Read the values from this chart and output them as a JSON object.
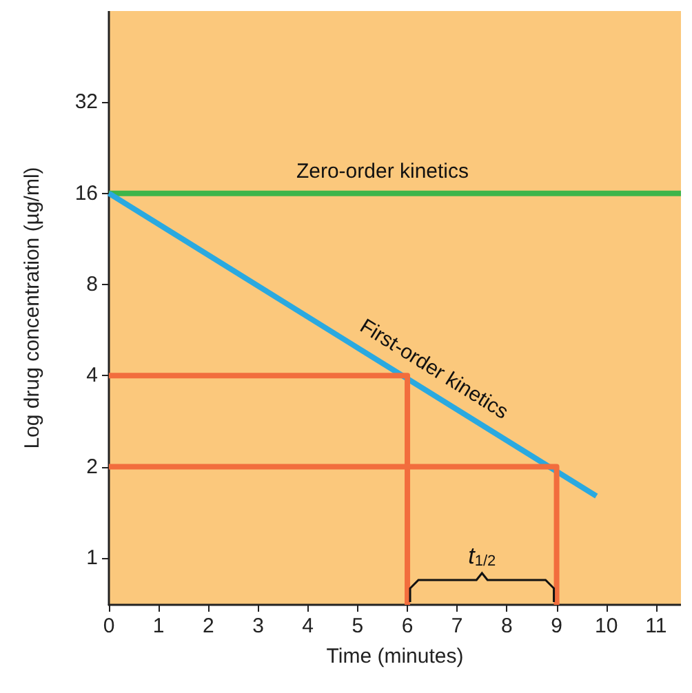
{
  "chart_data": {
    "type": "line",
    "xlabel": "Time (minutes)",
    "ylabel": "Log drug concentration (µg/ml)",
    "log": "y",
    "xlim": [
      0,
      11.5
    ],
    "ylim": [
      0.7,
      64
    ],
    "xticks": [
      0,
      1,
      2,
      3,
      4,
      5,
      6,
      7,
      8,
      9,
      10,
      11
    ],
    "yticks": [
      1,
      2,
      4,
      8,
      16,
      32
    ],
    "grid": false,
    "marker": "none",
    "line_style": "solid",
    "series": [
      {
        "color": "#3db54a",
        "x": [
          0,
          11.5
        ],
        "values": [
          16,
          16
        ]
      },
      {
        "color": "#2aa9e0",
        "x": [
          0,
          9.8
        ],
        "values": [
          16,
          1.6
        ]
      },
      {
        "color": "#f26d3d",
        "x": [
          0,
          6,
          6
        ],
        "values": [
          4,
          4,
          0.7
        ]
      },
      {
        "color": "#f26d3d",
        "x": [
          0,
          9,
          9
        ],
        "values": [
          2,
          2,
          0.7
        ]
      }
    ],
    "annotations": [
      {
        "text": "Zero-order kinetics",
        "x": 5.5,
        "y": 16
      },
      {
        "text": "First-order kinetics",
        "x": 6.3,
        "y": 3.64
      },
      "t$_{1/2}$"
    ]
  }
}
